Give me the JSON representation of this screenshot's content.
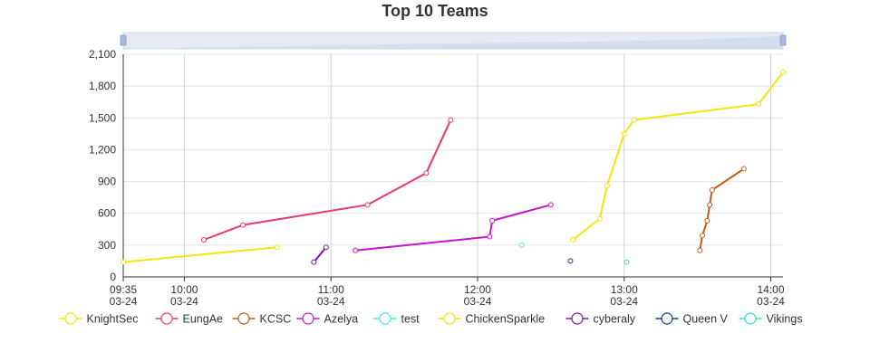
{
  "chart_data": {
    "type": "line",
    "title": "Top 10 Teams",
    "xlabel": "",
    "ylabel": "",
    "x_axis": {
      "min": "09:35",
      "max": "14:05",
      "ticks": [
        {
          "time": "09:35",
          "date": "03-24"
        },
        {
          "time": "10:00",
          "date": "03-24"
        },
        {
          "time": "11:00",
          "date": "03-24"
        },
        {
          "time": "12:00",
          "date": "03-24"
        },
        {
          "time": "13:00",
          "date": "03-24"
        },
        {
          "time": "14:00",
          "date": "03-24"
        }
      ]
    },
    "y_axis": {
      "min": 0,
      "max": 2100,
      "ticks": [
        {
          "value": 0,
          "label": "0"
        },
        {
          "value": 300,
          "label": "300"
        },
        {
          "value": 600,
          "label": "600"
        },
        {
          "value": 900,
          "label": "900"
        },
        {
          "value": 1200,
          "label": "1,200"
        },
        {
          "value": 1500,
          "label": "1,500"
        },
        {
          "value": 1800,
          "label": "1,800"
        },
        {
          "value": 2100,
          "label": "2,100"
        }
      ]
    },
    "grid": true,
    "legend_position": "bottom",
    "has_zoom_slider": true,
    "series": [
      {
        "name": "KnightSec",
        "color": "#f5e50a",
        "points": [
          [
            "09:35",
            140
          ],
          [
            "10:38",
            280
          ]
        ]
      },
      {
        "name": "EungAe",
        "color": "#e6396f",
        "points": [
          [
            "10:08",
            350
          ],
          [
            "10:24",
            490
          ],
          [
            "11:15",
            680
          ],
          [
            "11:39",
            980
          ],
          [
            "11:49",
            1480
          ]
        ]
      },
      {
        "name": "KCSC",
        "color": "#c85a19",
        "points": [
          [
            "13:31",
            250
          ],
          [
            "13:32",
            390
          ],
          [
            "13:34",
            530
          ],
          [
            "13:35",
            680
          ],
          [
            "13:36",
            820
          ],
          [
            "13:49",
            1020
          ]
        ]
      },
      {
        "name": "Azelya",
        "color": "#cc11cc",
        "points": [
          [
            "11:10",
            250
          ],
          [
            "12:05",
            380
          ],
          [
            "12:06",
            530
          ],
          [
            "12:30",
            680
          ]
        ]
      },
      {
        "name": "test",
        "color": "#4fe8d8",
        "points": [
          [
            "12:18",
            300
          ]
        ]
      },
      {
        "name": "ChickenSparkle",
        "color": "#f5e50a",
        "points": [
          [
            "12:39",
            350
          ],
          [
            "12:50",
            550
          ],
          [
            "12:53",
            860
          ],
          [
            "13:00",
            1350
          ],
          [
            "13:04",
            1480
          ],
          [
            "13:55",
            1630
          ],
          [
            "14:05",
            1930
          ]
        ]
      },
      {
        "name": "cyberaly",
        "color": "#7711bb",
        "points": [
          [
            "10:53",
            140
          ],
          [
            "10:58",
            280
          ]
        ]
      },
      {
        "name": "Queen V",
        "color": "#1133aa",
        "points": [
          [
            "12:38",
            150
          ]
        ]
      },
      {
        "name": "Vikings",
        "color": "#33ddd0",
        "points": [
          [
            "13:01",
            140
          ]
        ]
      }
    ]
  }
}
